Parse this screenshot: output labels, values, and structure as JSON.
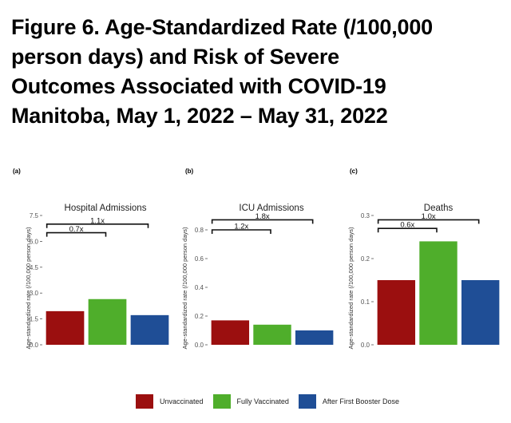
{
  "title_lines": [
    "Figure 6. Age-Standardized Rate (/100,000",
    "person days) and Risk of Severe",
    "Outcomes Associated with COVID-19",
    "Manitoba, May 1, 2022 – May 31, 2022"
  ],
  "colors": {
    "unvaccinated": "#9b0f0f",
    "fully_vaccinated": "#4fae2b",
    "booster": "#1f4e96"
  },
  "legend": [
    {
      "label": "Unvaccinated",
      "color": "#9b0f0f"
    },
    {
      "label": "Fully Vaccinated",
      "color": "#4fae2b"
    },
    {
      "label": "After First Booster Dose",
      "color": "#1f4e96"
    }
  ],
  "chart_data": [
    {
      "type": "bar",
      "panel": "(a)",
      "title": "Hospital Admissions",
      "ylabel": "Age-standardized rate (/100,000 person days)",
      "categories": [
        "Unvaccinated",
        "Fully Vaccinated",
        "After First Booster Dose"
      ],
      "values": [
        1.95,
        2.65,
        1.72
      ],
      "ylim": [
        0,
        7.5
      ],
      "yticks": [
        0.0,
        1.5,
        3.0,
        4.5,
        6.0,
        7.5
      ],
      "ytick_labels": [
        "0.0",
        "1.5",
        "3.0",
        "4.5",
        "6.0",
        "7.5"
      ],
      "brackets": [
        {
          "label": "1.1x",
          "from": 0,
          "to": 2,
          "y": 7.0
        },
        {
          "label": "0.7x",
          "from": 0,
          "to": 1,
          "y": 6.5
        }
      ]
    },
    {
      "type": "bar",
      "panel": "(b)",
      "title": "ICU Admissions",
      "ylabel": "Age-standardized rate (/100,000 person days)",
      "categories": [
        "Unvaccinated",
        "Fully Vaccinated",
        "After First Booster Dose"
      ],
      "values": [
        0.17,
        0.14,
        0.1
      ],
      "ylim": [
        0,
        0.9
      ],
      "yticks": [
        0.0,
        0.2,
        0.4,
        0.6,
        0.8
      ],
      "ytick_labels": [
        "0.0",
        "0.2",
        "0.4",
        "0.6",
        "0.8"
      ],
      "brackets": [
        {
          "label": "1.8x",
          "from": 0,
          "to": 2,
          "y": 0.87
        },
        {
          "label": "1.2x",
          "from": 0,
          "to": 1,
          "y": 0.8
        }
      ]
    },
    {
      "type": "bar",
      "panel": "(c)",
      "title": "Deaths",
      "ylabel": "Age-standardized rate (/100,000 person days)",
      "categories": [
        "Unvaccinated",
        "Fully Vaccinated",
        "After First Booster Dose"
      ],
      "values": [
        0.15,
        0.24,
        0.15
      ],
      "ylim": [
        0,
        0.3
      ],
      "yticks": [
        0.0,
        0.1,
        0.2,
        0.3
      ],
      "ytick_labels": [
        "0.0",
        "0.1",
        "0.2",
        "0.3"
      ],
      "brackets": [
        {
          "label": "1.0x",
          "from": 0,
          "to": 2,
          "y": 0.29
        },
        {
          "label": "0.6x",
          "from": 0,
          "to": 1,
          "y": 0.27
        }
      ]
    }
  ]
}
